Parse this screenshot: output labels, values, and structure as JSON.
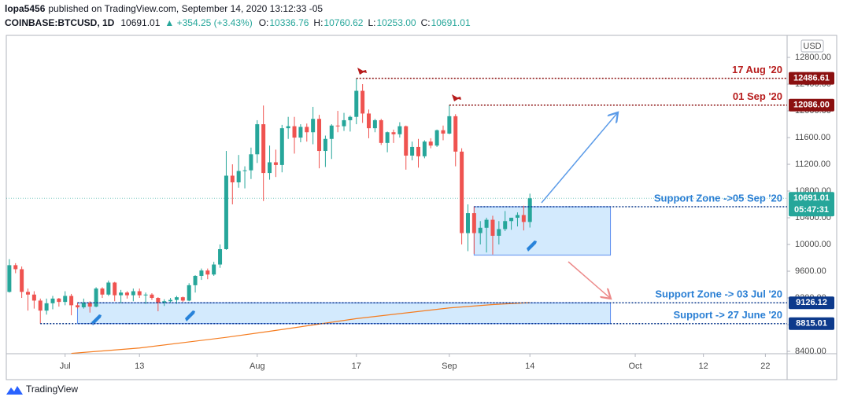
{
  "chart_data": {
    "type": "candlestick",
    "header": {
      "author": "lopa5456",
      "published": "published on TradingView.com, September 14, 2020 13:12:33 -05",
      "symbol": "COINBASE:BTCUSD, 1D",
      "price": "10691.01",
      "change": "▲ +354.25 (+3.43%)",
      "ohlc": [
        [
          "O:",
          "10336.76"
        ],
        [
          "H:",
          "10760.62"
        ],
        [
          "L:",
          "10253.00"
        ],
        [
          "C:",
          "10691.01"
        ]
      ]
    },
    "currency": "USD",
    "brand": "TradingView",
    "up_color": "#26a69a",
    "down_color": "#ef5350",
    "x": [
      "2020-06-22",
      "2020-06-23",
      "2020-06-24",
      "2020-06-25",
      "2020-06-26",
      "2020-06-27",
      "2020-06-28",
      "2020-06-29",
      "2020-06-30",
      "2020-07-01",
      "2020-07-02",
      "2020-07-03",
      "2020-07-04",
      "2020-07-05",
      "2020-07-06",
      "2020-07-07",
      "2020-07-08",
      "2020-07-09",
      "2020-07-10",
      "2020-07-11",
      "2020-07-12",
      "2020-07-13",
      "2020-07-14",
      "2020-07-15",
      "2020-07-16",
      "2020-07-17",
      "2020-07-18",
      "2020-07-19",
      "2020-07-20",
      "2020-07-21",
      "2020-07-22",
      "2020-07-23",
      "2020-07-24",
      "2020-07-25",
      "2020-07-26",
      "2020-07-27",
      "2020-07-28",
      "2020-07-29",
      "2020-07-30",
      "2020-07-31",
      "2020-08-01",
      "2020-08-02",
      "2020-08-03",
      "2020-08-04",
      "2020-08-05",
      "2020-08-06",
      "2020-08-07",
      "2020-08-08",
      "2020-08-09",
      "2020-08-10",
      "2020-08-11",
      "2020-08-12",
      "2020-08-13",
      "2020-08-14",
      "2020-08-15",
      "2020-08-16",
      "2020-08-17",
      "2020-08-18",
      "2020-08-19",
      "2020-08-20",
      "2020-08-21",
      "2020-08-22",
      "2020-08-23",
      "2020-08-24",
      "2020-08-25",
      "2020-08-26",
      "2020-08-27",
      "2020-08-28",
      "2020-08-29",
      "2020-08-30",
      "2020-08-31",
      "2020-09-01",
      "2020-09-02",
      "2020-09-03",
      "2020-09-04",
      "2020-09-05",
      "2020-09-06",
      "2020-09-07",
      "2020-09-08",
      "2020-09-09",
      "2020-09-10",
      "2020-09-11",
      "2020-09-12",
      "2020-09-13",
      "2020-09-14"
    ],
    "open": [
      9290,
      9690,
      9630,
      9290,
      9250,
      9160,
      9010,
      9120,
      9190,
      9140,
      9230,
      9090,
      9060,
      9130,
      9070,
      9340,
      9250,
      9430,
      9240,
      9280,
      9240,
      9300,
      9240,
      9250,
      9200,
      9130,
      9150,
      9170,
      9210,
      9160,
      9390,
      9530,
      9610,
      9550,
      9700,
      9930,
      11030,
      10930,
      11100,
      11110,
      11350,
      11800,
      11070,
      11230,
      11190,
      11740,
      11770,
      11600,
      11760,
      11680,
      11880,
      11400,
      11580,
      11780,
      11770,
      11860,
      11910,
      12300,
      11960,
      11740,
      11860,
      11520,
      11680,
      11650,
      11770,
      11330,
      11460,
      11320,
      11540,
      11480,
      11710,
      11660,
      11920,
      11390,
      10170,
      10470,
      10170,
      10250,
      10370,
      10130,
      10230,
      10350,
      10400,
      10440,
      10336.76
    ],
    "high": [
      9780,
      9720,
      9670,
      9340,
      9300,
      9190,
      9190,
      9230,
      9200,
      9300,
      9260,
      9126.12,
      9190,
      9150,
      9360,
      9360,
      9460,
      9440,
      9320,
      9300,
      9340,
      9340,
      9280,
      9270,
      9210,
      9180,
      9200,
      9230,
      9220,
      9420,
      9540,
      9640,
      9640,
      9740,
      10000,
      11400,
      11200,
      11340,
      11170,
      11450,
      11860,
      12080,
      11480,
      11420,
      11790,
      11910,
      11910,
      11800,
      11810,
      12060,
      11940,
      11630,
      11800,
      12000,
      11970,
      11930,
      12486.61,
      12400,
      12020,
      11880,
      11880,
      11690,
      11720,
      11830,
      11780,
      11540,
      11580,
      11560,
      11590,
      11720,
      11780,
      12086,
      11950,
      11440,
      10600,
      10570,
      10350,
      10400,
      10430,
      10350,
      10500,
      10400,
      10480,
      10580,
      10760.62
    ],
    "low": [
      9280,
      9570,
      9200,
      9010,
      9040,
      8815.01,
      8950,
      9030,
      9070,
      9090,
      8940,
      9040,
      9040,
      8980,
      9060,
      9200,
      9230,
      9150,
      9120,
      9190,
      9150,
      9200,
      9110,
      9170,
      9000,
      9080,
      9130,
      9110,
      9140,
      9150,
      9280,
      9470,
      9480,
      9530,
      9650,
      9920,
      10600,
      10850,
      10840,
      10980,
      11220,
      10650,
      10970,
      11010,
      11080,
      11580,
      11360,
      11530,
      11540,
      11500,
      11140,
      11160,
      11280,
      11680,
      11700,
      11690,
      11800,
      11820,
      11590,
      11680,
      11490,
      11380,
      11520,
      11600,
      11120,
      11260,
      11150,
      11290,
      11440,
      11460,
      11560,
      11650,
      11170,
      10000,
      9900,
      9860,
      10000,
      9880,
      9850,
      10000,
      10200,
      10220,
      10270,
      10210,
      10253.0
    ],
    "close": [
      9690,
      9630,
      9290,
      9250,
      9160,
      9010,
      9120,
      9190,
      9140,
      9230,
      9090,
      9060,
      9130,
      9070,
      9340,
      9250,
      9430,
      9240,
      9280,
      9240,
      9300,
      9240,
      9250,
      9200,
      9130,
      9150,
      9170,
      9210,
      9160,
      9390,
      9530,
      9610,
      9550,
      9700,
      9930,
      11030,
      10930,
      11100,
      11110,
      11350,
      11800,
      11070,
      11230,
      11190,
      11740,
      11770,
      11600,
      11760,
      11680,
      11880,
      11400,
      11580,
      11780,
      11770,
      11860,
      11910,
      12300,
      11960,
      11740,
      11860,
      11520,
      11680,
      11650,
      11770,
      11330,
      11460,
      11320,
      11540,
      11480,
      11710,
      11660,
      11920,
      11390,
      10170,
      10470,
      10170,
      10250,
      10370,
      10130,
      10230,
      10350,
      10400,
      10440,
      10336.76,
      10691.01
    ],
    "ma": {
      "color": "#f57c1f",
      "x": [
        "2020-07-02",
        "2020-07-13",
        "2020-07-27",
        "2020-08-03",
        "2020-08-17",
        "2020-09-01",
        "2020-09-08",
        "2020-09-14"
      ],
      "values": [
        8370,
        8450,
        8610,
        8700,
        8890,
        9050,
        9100,
        9130
      ]
    },
    "xlim": [
      "2020-06-21",
      "2020-10-25"
    ],
    "xticks": [
      {
        "value": "2020-07-01",
        "label": "Jul"
      },
      {
        "value": "2020-07-13",
        "label": "13"
      },
      {
        "value": "2020-08-01",
        "label": "Aug"
      },
      {
        "value": "2020-08-17",
        "label": "17"
      },
      {
        "value": "2020-09-01",
        "label": "Sep"
      },
      {
        "value": "2020-09-14",
        "label": "14"
      },
      {
        "value": "2020-10-01",
        "label": "Oct"
      },
      {
        "value": "2020-10-12",
        "label": "12"
      },
      {
        "value": "2020-10-22",
        "label": "22"
      }
    ],
    "ylim": [
      8365,
      13130
    ],
    "yticks": [
      {
        "value": 8400,
        "label": "8400.00"
      },
      {
        "value": 8800,
        "label": "8800.00"
      },
      {
        "value": 9200,
        "label": "9200.00"
      },
      {
        "value": 9600,
        "label": "9600.00"
      },
      {
        "value": 10000,
        "label": "10000.00"
      },
      {
        "value": 10400,
        "label": "10400.00"
      },
      {
        "value": 10800,
        "label": "10800.00"
      },
      {
        "value": 11200,
        "label": "11200.00"
      },
      {
        "value": 11600,
        "label": "11600.00"
      },
      {
        "value": 12000,
        "label": "12000.00"
      },
      {
        "value": 12400,
        "label": "12400.00"
      },
      {
        "value": 12800,
        "label": "12800.00"
      }
    ],
    "grid": false,
    "levels": [
      {
        "value": 12486.61,
        "label": "12486.61",
        "start": "2020-08-17",
        "text": "17 Aug '20",
        "color": "#8b1010",
        "text_color": "#b71c1c"
      },
      {
        "value": 12086,
        "label": "12086.00",
        "start": "2020-09-01",
        "text": "01 Sep '20",
        "color": "#8b1010",
        "text_color": "#b71c1c"
      },
      {
        "value": 10564.8,
        "label": "10564.80",
        "start": "2020-09-05",
        "text": "Support Zone ->05 Sep '20",
        "color": "#0d3a8c",
        "text_color": "#2a7fd4"
      },
      {
        "value": 9126.12,
        "label": "9126.12",
        "start": "2020-07-03",
        "text": "Support Zone -> 03 Jul '20",
        "color": "#0d3a8c",
        "text_color": "#2a7fd4"
      },
      {
        "value": 8815.01,
        "label": "8815.01",
        "start": "2020-06-27",
        "text": "Support -> 27 June '20",
        "color": "#0d3a8c",
        "text_color": "#2a7fd4"
      }
    ],
    "last": {
      "value": 10691.01,
      "label": "10691.01",
      "countdown": "05:47:31",
      "color": "#26a69a"
    },
    "zones": [
      {
        "start": "2020-09-05",
        "end": "2020-09-27",
        "top": 10564.8,
        "bottom": 9840
      },
      {
        "start": "2020-07-03",
        "end": "2020-09-27",
        "top": 9126.12,
        "bottom": 8815.01
      }
    ]
  }
}
